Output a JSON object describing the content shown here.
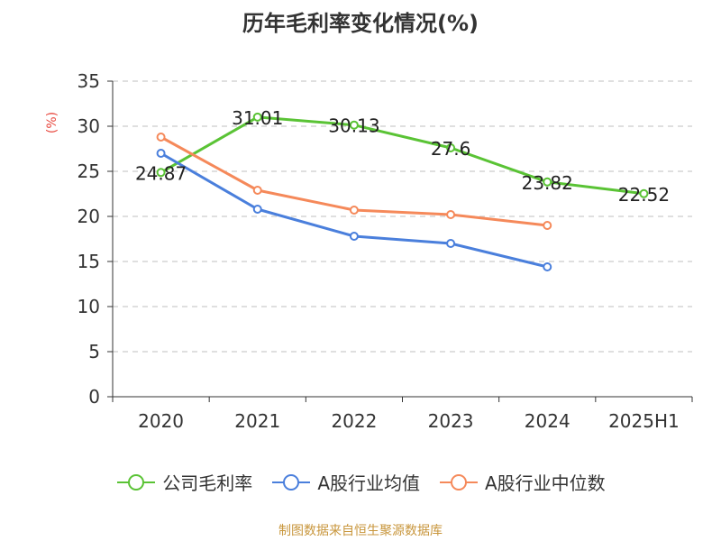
{
  "title": "历年毛利率变化情况(%)",
  "source": "制图数据来自恒生聚源数据库",
  "colors": {
    "axis_unit": "#e8483f",
    "grid": "#cccccc",
    "axis": "#333333"
  },
  "chart_data": {
    "type": "line",
    "title": "历年毛利率变化情况(%)",
    "ylabel": "(%)",
    "xlabel": "",
    "ylim": [
      0,
      35
    ],
    "yticks": [
      0,
      5,
      10,
      15,
      20,
      25,
      30,
      35
    ],
    "categories": [
      "2020",
      "2021",
      "2022",
      "2023",
      "2024",
      "2025H1"
    ],
    "grid": true,
    "legend_position": "bottom",
    "series": [
      {
        "name": "公司毛利率",
        "color": "#5ac335",
        "values": [
          24.87,
          31.01,
          30.13,
          27.6,
          23.82,
          22.52
        ],
        "labels": [
          "24.87",
          "31.01",
          "30.13",
          "27.6",
          "23.82",
          "22.52"
        ]
      },
      {
        "name": "A股行业均值",
        "color": "#4a7fdc",
        "values": [
          27.0,
          20.8,
          17.8,
          17.0,
          14.4,
          null
        ]
      },
      {
        "name": "A股行业中位数",
        "color": "#f5895a",
        "values": [
          28.8,
          22.9,
          20.7,
          20.2,
          19.0,
          null
        ]
      }
    ]
  }
}
